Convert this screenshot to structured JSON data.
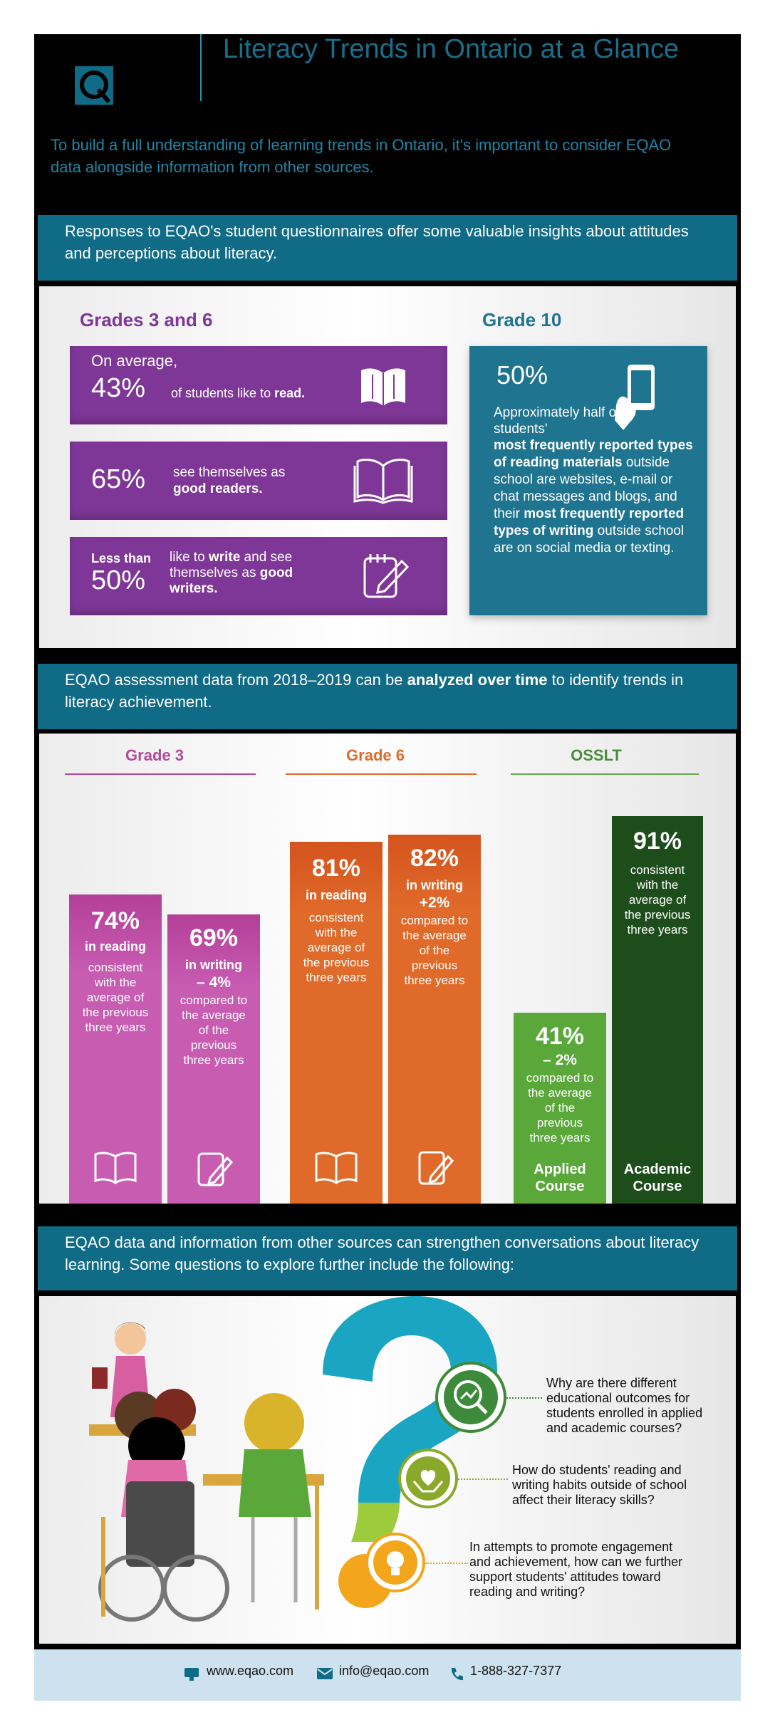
{
  "header": {
    "title": "Literacy Trends in Ontario at a Glance",
    "logo_letter": "Q",
    "intro": "To build a full understanding of learning trends in Ontario, it's important to consider EQAO data alongside information from other sources."
  },
  "section1": {
    "banner": "Responses to EQAO's student questionnaires offer some valuable insights about attitudes and perceptions about literacy.",
    "left_heading": "Grades 3 and 6",
    "right_heading": "Grade 10",
    "stat1": {
      "prefix": "On average,",
      "value": "43%",
      "text_a": "of students like to ",
      "text_b": "read."
    },
    "stat2": {
      "value": "65%",
      "text_a": "see themselves as",
      "text_b": "good readers."
    },
    "stat3": {
      "prefix": "Less than",
      "value": "50%",
      "text_a": "like to ",
      "text_b": "write",
      "text_c": " and see themselves as ",
      "text_d": "good",
      "text_e": "writers."
    },
    "grade10": {
      "value": "50%",
      "p1": "Approximately half of students'",
      "p2": "most frequently reported types of reading materials",
      "p3": " outside school are websites, e-mail or chat messages and blogs, and their ",
      "p4": "most frequently reported types of writing",
      "p5": " outside school are on social media or texting."
    }
  },
  "section2": {
    "banner_a": "EQAO assessment data from 2018–2019 can be ",
    "banner_b": "analyzed over time",
    "banner_c": " to identify trends in literacy achievement.",
    "columns": [
      {
        "label": "Grade 3",
        "color": "#b3489c"
      },
      {
        "label": "Grade 6",
        "color": "#e06a2a"
      },
      {
        "label": "OSSLT",
        "color": "#4a8c3a"
      }
    ],
    "bars": [
      {
        "value": "74%",
        "label": "in reading",
        "change": "",
        "note": "consistent with the average of the previous three years",
        "icon": "book-icon"
      },
      {
        "value": "69%",
        "label": "in writing",
        "change": "– 4%",
        "note": "compared to the average of the previous three years",
        "icon": "notepad-icon"
      },
      {
        "value": "81%",
        "label": "in reading",
        "change": "",
        "note": "consistent with the average of the previous three years",
        "icon": "book-icon"
      },
      {
        "value": "82%",
        "label": "in writing",
        "change": "+2%",
        "note": "compared to the average of the previous three years",
        "icon": "notepad-icon"
      },
      {
        "value": "41%",
        "label": "",
        "change": "– 2%",
        "note": "compared to the average of the previous three years",
        "course": "Applied Course"
      },
      {
        "value": "91%",
        "label": "",
        "change": "",
        "note": "consistent with the average of the previous three years",
        "course": "Academic Course"
      }
    ]
  },
  "section3": {
    "banner": "EQAO data and information from other sources can strengthen conversations about literacy learning. Some questions to explore further include the following:",
    "questions": [
      "Why are there different educational outcomes for students enrolled in applied and academic courses?",
      "How do students' reading and writing habits outside of school affect their literacy skills?",
      "In attempts to promote engagement and achievement, how can we further support students' attitudes toward reading and writing?"
    ]
  },
  "footer": {
    "website": "www.eqao.com",
    "email": "info@eqao.com",
    "phone": "1-888-327-7377"
  }
}
